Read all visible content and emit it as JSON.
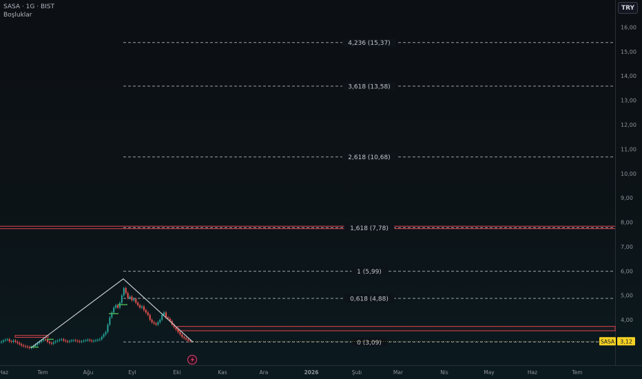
{
  "header": {
    "symbol": "SASA · 1G · BIST",
    "indicator": "Boşluklar"
  },
  "currency": "TRY",
  "price_tag": {
    "symbol": "SASA",
    "price": "3,12"
  },
  "chart_data": {
    "type": "candlestick",
    "y_axis_ticks": [
      "4,00",
      "5,00",
      "6,00",
      "7,00",
      "8,00",
      "9,00",
      "10,00",
      "11,00",
      "12,00",
      "13,00",
      "14,00",
      "15,00",
      "16,00"
    ],
    "y_axis_values": [
      4,
      5,
      6,
      7,
      8,
      9,
      10,
      11,
      12,
      13,
      14,
      15,
      16
    ],
    "ylim": [
      2.15,
      16.5
    ],
    "x_axis_ticks": [
      "Haz",
      "Tem",
      "Ağu",
      "Eyl",
      "Eki",
      "Kas",
      "Ara",
      "2026",
      "Şub",
      "Mar",
      "Nis",
      "May",
      "Haz",
      "Tem"
    ],
    "fibonacci_levels": [
      {
        "label": "0 (3,09)",
        "price": 3.09
      },
      {
        "label": "0,618 (4,88)",
        "price": 4.88
      },
      {
        "label": "1 (5,99)",
        "price": 5.99
      },
      {
        "label": "1,618 (7,78)",
        "price": 7.78
      },
      {
        "label": "2,618 (10,68)",
        "price": 10.68
      },
      {
        "label": "3,618 (13,58)",
        "price": 13.58
      },
      {
        "label": "4,236 (15,37)",
        "price": 15.37
      }
    ],
    "resistance_lines": [
      7.74,
      7.84
    ],
    "support_zone": [
      3.55,
      3.73
    ],
    "gap_zone": [
      3.28,
      3.36
    ],
    "pattern_line": [
      {
        "date": "2025-06-27",
        "price": 2.85
      },
      {
        "date": "2025-09-01",
        "price": 5.68
      },
      {
        "date": "2025-10-20",
        "price": 3.09
      }
    ],
    "close_series": [
      3.1,
      3.15,
      3.18,
      3.2,
      3.12,
      3.1,
      3.15,
      3.1,
      3.05,
      3.0,
      2.95,
      2.92,
      2.9,
      2.88,
      2.85,
      2.88,
      2.92,
      2.98,
      3.05,
      3.1,
      3.15,
      3.2,
      3.18,
      3.1,
      3.05,
      3.02,
      3.08,
      3.12,
      3.15,
      3.18,
      3.2,
      3.15,
      3.12,
      3.1,
      3.13,
      3.15,
      3.16,
      3.14,
      3.12,
      3.1,
      3.12,
      3.14,
      3.16,
      3.18,
      3.15,
      3.12,
      3.14,
      3.16,
      3.18,
      3.2,
      3.3,
      3.4,
      3.5,
      3.8,
      4.1,
      4.3,
      4.5,
      4.6,
      4.5,
      4.7,
      5.0,
      5.3,
      5.1,
      4.9,
      4.95,
      4.8,
      4.85,
      4.7,
      4.6,
      4.5,
      4.55,
      4.4,
      4.3,
      4.2,
      4.0,
      3.9,
      3.85,
      3.8,
      3.9,
      4.0,
      4.2,
      4.3,
      4.1,
      4.05,
      3.95,
      3.8,
      3.7,
      3.6,
      3.5,
      3.4,
      3.3,
      3.25,
      3.2,
      3.15,
      3.12
    ],
    "last_price": 3.12
  }
}
